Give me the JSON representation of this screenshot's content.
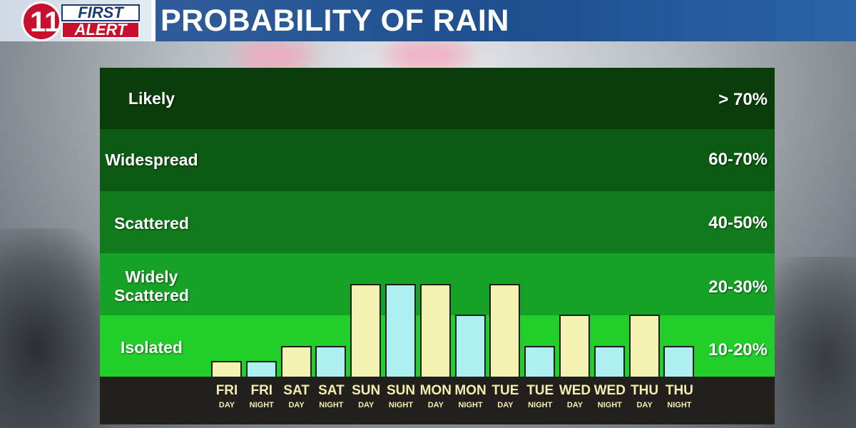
{
  "header": {
    "title": "PROBABILITY OF RAIN"
  },
  "logo": {
    "number": "11",
    "top_text": "FIRST",
    "bottom_text": "ALERT"
  },
  "colors": {
    "band_likely": "#0b3d0b",
    "band_widespread": "#0c5a13",
    "band_scattered": "#117a1c",
    "band_widely_scattered": "#16a226",
    "band_isolated": "#22cf2a",
    "bar_day": "#f4f2b2",
    "bar_night": "#aeeff2",
    "tick_text": "#f3eeb0"
  },
  "chart_data": {
    "type": "bar",
    "title": "PROBABILITY OF RAIN",
    "categories": [
      "FRI DAY",
      "FRI NIGHT",
      "SAT DAY",
      "SAT NIGHT",
      "SUN DAY",
      "SUN NIGHT",
      "MON DAY",
      "MON NIGHT",
      "TUE DAY",
      "TUE NIGHT",
      "WED DAY",
      "WED NIGHT",
      "THU DAY",
      "THU NIGHT"
    ],
    "tick_labels": [
      {
        "day": "FRI",
        "period": "DAY"
      },
      {
        "day": "FRI",
        "period": "NIGHT"
      },
      {
        "day": "SAT",
        "period": "DAY"
      },
      {
        "day": "SAT",
        "period": "NIGHT"
      },
      {
        "day": "SUN",
        "period": "DAY"
      },
      {
        "day": "SUN",
        "period": "NIGHT"
      },
      {
        "day": "MON",
        "period": "DAY"
      },
      {
        "day": "MON",
        "period": "NIGHT"
      },
      {
        "day": "TUE",
        "period": "DAY"
      },
      {
        "day": "TUE",
        "period": "NIGHT"
      },
      {
        "day": "WED",
        "period": "DAY"
      },
      {
        "day": "WED",
        "period": "NIGHT"
      },
      {
        "day": "THU",
        "period": "DAY"
      },
      {
        "day": "THU",
        "period": "NIGHT"
      }
    ],
    "values": [
      5,
      5,
      10,
      10,
      30,
      30,
      30,
      20,
      30,
      10,
      20,
      10,
      20,
      10
    ],
    "value_scale": "bands: 0-20 Isolated, 20-40 Widely Scattered, 40-60 Scattered, 60-80 Widespread, 80-100 Likely (approximate percent)",
    "bands": [
      {
        "label": "Likely",
        "range": "> 70%"
      },
      {
        "label": "Widespread",
        "range": "60-70%"
      },
      {
        "label": "Scattered",
        "range": "40-50%"
      },
      {
        "label": "Widely\nScattered",
        "range": "20-30%"
      },
      {
        "label": "Isolated",
        "range": "10-20%"
      }
    ],
    "ylim": [
      0,
      100
    ],
    "grid": false,
    "legend": "none"
  }
}
